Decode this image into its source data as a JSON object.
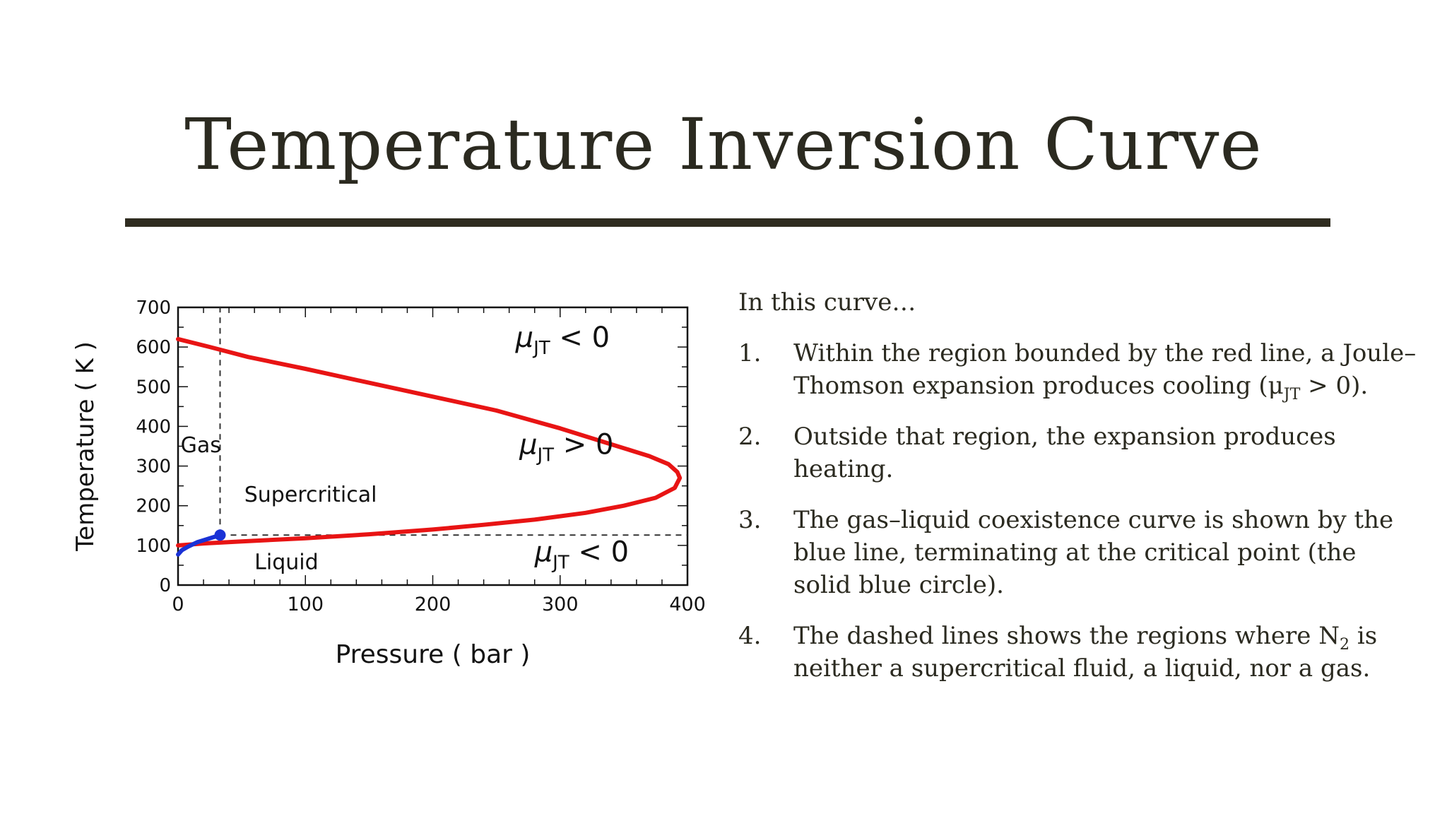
{
  "slide": {
    "title": "Temperature Inversion Curve"
  },
  "chart_data": {
    "type": "line",
    "xlabel": "Pressure ( bar )",
    "ylabel": "Temperature ( K )",
    "xlim": [
      0,
      400
    ],
    "ylim": [
      0,
      700
    ],
    "x_ticks": [
      0,
      100,
      200,
      300,
      400
    ],
    "y_ticks": [
      0,
      100,
      200,
      300,
      400,
      500,
      600,
      700
    ],
    "series": [
      {
        "color": "#e81414",
        "points": [
          [
            0,
            620
          ],
          [
            25,
            600
          ],
          [
            55,
            575
          ],
          [
            100,
            545
          ],
          [
            150,
            510
          ],
          [
            200,
            475
          ],
          [
            250,
            440
          ],
          [
            300,
            395
          ],
          [
            340,
            355
          ],
          [
            370,
            325
          ],
          [
            385,
            305
          ],
          [
            392,
            285
          ],
          [
            394,
            270
          ],
          [
            390,
            245
          ],
          [
            375,
            220
          ],
          [
            350,
            200
          ],
          [
            320,
            182
          ],
          [
            280,
            165
          ],
          [
            240,
            152
          ],
          [
            200,
            140
          ],
          [
            150,
            128
          ],
          [
            100,
            118
          ],
          [
            50,
            110
          ],
          [
            20,
            105
          ],
          [
            0,
            100
          ]
        ]
      },
      {
        "color": "#1a32d6",
        "points": [
          [
            0,
            77
          ],
          [
            3,
            88
          ],
          [
            8,
            97
          ],
          [
            15,
            108
          ],
          [
            25,
            118
          ],
          [
            33,
            126
          ]
        ]
      }
    ],
    "critical_point": {
      "x": 33,
      "y": 126,
      "color": "#1a32d6"
    },
    "dashed_lines": [
      {
        "x": 33,
        "y_from": 126,
        "y_to": 700
      },
      {
        "y": 126,
        "x_from": 33,
        "x_to": 400
      }
    ],
    "annotations": [
      {
        "mu": "μ",
        "sub": "JT",
        "rest": " < 0",
        "x": 265,
        "y": 600
      },
      {
        "mu": "μ",
        "sub": "JT",
        "rest": " > 0",
        "x": 268,
        "y": 330
      },
      {
        "mu": "μ",
        "sub": "JT",
        "rest": " < 0",
        "x": 280,
        "y": 60
      },
      {
        "text": "Gas",
        "x": 2,
        "y": 335
      },
      {
        "text": "Supercritical",
        "x": 52,
        "y": 210
      },
      {
        "text": "Liquid",
        "x": 60,
        "y": 40
      }
    ]
  },
  "content": {
    "intro": "In this curve…",
    "points": [
      {
        "num": "1.",
        "text_a": "Within the region bounded by the red line, a Joule–Thomson expansion produces cooling (μ",
        "sub": "JT",
        "text_b": " > 0)."
      },
      {
        "num": "2.",
        "text_a": "Outside that region, the expansion produces heating.",
        "sub": "",
        "text_b": ""
      },
      {
        "num": "3.",
        "text_a": "The gas–liquid coexistence curve is shown by the blue line, terminating at the critical point (the solid blue circle).",
        "sub": "",
        "text_b": ""
      },
      {
        "num": "4.",
        "text_a": "The dashed lines shows the regions where N",
        "sub": "2",
        "text_b": " is neither a supercritical fluid, a liquid, nor a gas."
      }
    ]
  }
}
